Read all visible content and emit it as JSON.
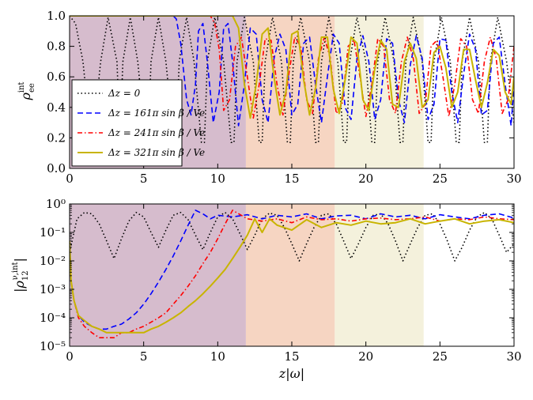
{
  "chart_data": [
    {
      "type": "line",
      "title": "",
      "xlabel": "z|ω|",
      "ylabel": "ρ_ee^int",
      "xlim": [
        0,
        30
      ],
      "ylim": [
        0,
        1.0
      ],
      "xticks": [
        "0",
        "5",
        "10",
        "15",
        "20",
        "25",
        "30"
      ],
      "yticks": [
        "0.0",
        "0.2",
        "0.4",
        "0.6",
        "0.8",
        "1.0"
      ],
      "shaded_regions": [
        {
          "x0": 0,
          "x1": 11.9,
          "color": "#d6bccd"
        },
        {
          "x0": 11.9,
          "x1": 17.9,
          "color": "#f6d5c2"
        },
        {
          "x0": 17.9,
          "x1": 23.9,
          "color": "#f4f1dc"
        }
      ],
      "series": [
        {
          "name": "Δz = 0",
          "color": "#000000",
          "style": "dotted",
          "x": [
            0,
            0.4,
            0.9,
            1.3,
            1.5,
            1.7,
            2.1,
            2.6,
            3.2,
            3.4,
            3.6,
            4.1,
            4.6,
            5.1,
            5.3,
            5.5,
            6.0,
            6.5,
            7.0,
            7.2,
            7.4,
            7.9,
            8.4,
            8.9,
            9.1,
            9.3,
            9.8,
            10.4,
            10.9,
            11.1,
            11.3,
            11.8,
            12.4,
            12.8,
            13.0,
            13.2,
            13.7,
            14.3,
            14.7,
            14.9,
            15.1,
            15.6,
            16.2,
            16.6,
            16.8,
            17.0,
            17.5,
            18.1,
            18.5,
            18.7,
            18.9,
            19.4,
            20.0,
            20.4,
            20.6,
            20.8,
            21.3,
            21.9,
            22.3,
            22.5,
            22.7,
            23.2,
            23.8,
            24.2,
            24.4,
            24.6,
            25.1,
            25.7,
            26.1,
            26.3,
            26.5,
            27.0,
            27.6,
            28.0,
            28.2,
            28.4,
            28.9,
            29.5,
            30
          ],
          "y": [
            1.0,
            0.95,
            0.7,
            0.32,
            0.2,
            0.32,
            0.7,
            0.99,
            0.7,
            0.2,
            0.7,
            0.99,
            0.7,
            0.2,
            0.2,
            0.7,
            0.99,
            0.7,
            0.2,
            0.2,
            0.7,
            0.99,
            0.7,
            0.17,
            0.17,
            0.7,
            0.99,
            0.7,
            0.17,
            0.17,
            0.7,
            0.99,
            0.7,
            0.17,
            0.17,
            0.7,
            0.99,
            0.7,
            0.17,
            0.17,
            0.7,
            0.99,
            0.7,
            0.17,
            0.17,
            0.7,
            0.99,
            0.7,
            0.17,
            0.17,
            0.7,
            0.99,
            0.7,
            0.17,
            0.17,
            0.7,
            0.99,
            0.7,
            0.17,
            0.17,
            0.7,
            0.99,
            0.7,
            0.17,
            0.17,
            0.7,
            0.99,
            0.7,
            0.17,
            0.17,
            0.7,
            0.99,
            0.7,
            0.17,
            0.17,
            0.7,
            0.99,
            0.7,
            0.3
          ]
        },
        {
          "name": "Δz = 161π sin β / V_e",
          "color": "#0000ff",
          "style": "dashed",
          "x": [
            0,
            7.0,
            7.2,
            7.5,
            7.9,
            8.2,
            8.5,
            8.7,
            9.0,
            9.3,
            9.7,
            10.1,
            10.4,
            10.7,
            11.0,
            11.4,
            11.8,
            12.2,
            12.6,
            13.0,
            13.4,
            13.8,
            14.2,
            14.6,
            15.0,
            15.4,
            15.8,
            16.2,
            16.6,
            17.0,
            17.4,
            17.8,
            18.2,
            18.6,
            19.0,
            19.4,
            19.8,
            20.2,
            20.6,
            21.0,
            21.4,
            21.8,
            22.2,
            22.6,
            23.0,
            23.4,
            23.8,
            24.2,
            24.6,
            25.0,
            25.4,
            25.8,
            26.2,
            26.6,
            27.0,
            27.4,
            27.8,
            28.2,
            28.6,
            29.0,
            29.4,
            29.8,
            30
          ],
          "y": [
            1.0,
            1.0,
            0.98,
            0.82,
            0.45,
            0.35,
            0.55,
            0.9,
            0.95,
            0.7,
            0.3,
            0.5,
            0.92,
            0.95,
            0.7,
            0.28,
            0.55,
            0.92,
            0.88,
            0.45,
            0.3,
            0.72,
            0.88,
            0.78,
            0.35,
            0.42,
            0.82,
            0.86,
            0.55,
            0.3,
            0.6,
            0.88,
            0.82,
            0.4,
            0.32,
            0.72,
            0.87,
            0.7,
            0.32,
            0.45,
            0.85,
            0.82,
            0.45,
            0.3,
            0.68,
            0.87,
            0.72,
            0.32,
            0.42,
            0.85,
            0.84,
            0.5,
            0.3,
            0.62,
            0.88,
            0.78,
            0.35,
            0.38,
            0.82,
            0.86,
            0.55,
            0.28,
            0.55
          ]
        },
        {
          "name": "Δz = 241π sin β / V_e",
          "color": "#ff0000",
          "style": "dashdot",
          "x": [
            0,
            9.5,
            9.8,
            10.1,
            10.4,
            10.8,
            11.2,
            11.6,
            12.0,
            12.4,
            12.8,
            13.2,
            13.6,
            14.0,
            14.4,
            14.8,
            15.2,
            15.6,
            16.0,
            16.4,
            16.8,
            17.2,
            17.6,
            18.0,
            18.4,
            18.8,
            19.2,
            19.6,
            20.0,
            20.4,
            20.8,
            21.2,
            21.6,
            22.0,
            22.4,
            22.8,
            23.2,
            23.6,
            24.0,
            24.4,
            24.8,
            25.2,
            25.6,
            26.0,
            26.4,
            26.8,
            27.2,
            27.6,
            28.0,
            28.4,
            28.8,
            29.2,
            29.6,
            30
          ],
          "y": [
            1.0,
            1.0,
            0.95,
            0.78,
            0.38,
            0.45,
            0.8,
            0.86,
            0.6,
            0.33,
            0.55,
            0.85,
            0.84,
            0.55,
            0.35,
            0.62,
            0.86,
            0.8,
            0.45,
            0.36,
            0.72,
            0.86,
            0.72,
            0.36,
            0.42,
            0.8,
            0.84,
            0.6,
            0.34,
            0.55,
            0.85,
            0.8,
            0.45,
            0.36,
            0.7,
            0.86,
            0.72,
            0.36,
            0.42,
            0.8,
            0.84,
            0.6,
            0.34,
            0.55,
            0.85,
            0.8,
            0.45,
            0.36,
            0.7,
            0.86,
            0.72,
            0.36,
            0.45,
            0.8
          ]
        },
        {
          "name": "Δz = 321π sin β / V_e",
          "color": "#c8b400",
          "style": "solid",
          "x": [
            0,
            11.0,
            11.4,
            11.8,
            12.2,
            12.6,
            13.0,
            13.4,
            13.8,
            14.2,
            14.6,
            15.0,
            15.4,
            15.8,
            16.2,
            16.6,
            17.0,
            17.4,
            17.8,
            18.2,
            18.6,
            19.0,
            19.4,
            19.8,
            20.2,
            20.6,
            21.0,
            21.4,
            21.8,
            22.2,
            22.6,
            23.0,
            23.4,
            23.8,
            24.2,
            24.6,
            25.0,
            25.4,
            25.8,
            26.2,
            26.6,
            27.0,
            27.4,
            27.8,
            28.2,
            28.6,
            29.0,
            29.4,
            29.8,
            30
          ],
          "y": [
            1.0,
            1.0,
            0.92,
            0.55,
            0.33,
            0.55,
            0.88,
            0.92,
            0.6,
            0.35,
            0.5,
            0.88,
            0.9,
            0.58,
            0.35,
            0.52,
            0.86,
            0.86,
            0.52,
            0.36,
            0.58,
            0.86,
            0.82,
            0.45,
            0.38,
            0.65,
            0.84,
            0.78,
            0.42,
            0.4,
            0.7,
            0.82,
            0.72,
            0.4,
            0.45,
            0.76,
            0.8,
            0.66,
            0.4,
            0.5,
            0.78,
            0.78,
            0.58,
            0.4,
            0.56,
            0.78,
            0.74,
            0.5,
            0.42,
            0.6
          ]
        }
      ],
      "legend": {
        "location": "lower-left",
        "entries": [
          "Δz = 0",
          "Δz = 161π sin β / Ve",
          "Δz = 241π sin β / Ve",
          "Δz = 321π sin β / Ve"
        ]
      }
    },
    {
      "type": "line",
      "title": "",
      "xlabel": "z|ω|",
      "ylabel": "|ρ_12^{ν,int}|",
      "yscale": "log",
      "xlim": [
        0,
        30
      ],
      "ylim": [
        1e-05,
        1
      ],
      "xticks": [
        "0",
        "5",
        "10",
        "15",
        "20",
        "25",
        "30"
      ],
      "yticks": [
        "10⁻⁵",
        "10⁻⁴",
        "10⁻³",
        "10⁻²",
        "10⁻¹",
        "10⁰"
      ],
      "shaded_regions": [
        {
          "x0": 0,
          "x1": 11.9,
          "color": "#d6bccd"
        },
        {
          "x0": 11.9,
          "x1": 17.9,
          "color": "#f6d5c2"
        },
        {
          "x0": 17.9,
          "x1": 23.9,
          "color": "#f4f1dc"
        }
      ],
      "series": [
        {
          "name": "Δz = 0",
          "color": "#000000",
          "style": "dotted",
          "x": [
            0,
            0.5,
            1.0,
            1.5,
            2.0,
            2.5,
            3.0,
            3.5,
            4.0,
            4.5,
            5.0,
            5.5,
            6.0,
            6.5,
            7.0,
            7.5,
            8.0,
            8.5,
            9.0,
            9.5,
            10.0,
            10.5,
            11.0,
            11.5,
            12.0,
            12.5,
            13.0,
            13.5,
            14.0,
            14.5,
            15.0,
            15.5,
            16.0,
            16.5,
            17.0,
            17.5,
            18.0,
            18.5,
            19.0,
            19.5,
            20.0,
            20.5,
            21.0,
            21.5,
            22.0,
            22.5,
            23.0,
            23.5,
            24.0,
            24.5,
            25.0,
            25.5,
            26.0,
            26.5,
            27.0,
            27.5,
            28.0,
            28.5,
            29.0,
            29.5,
            30
          ],
          "y": [
            0.02,
            0.3,
            0.5,
            0.45,
            0.2,
            0.05,
            0.012,
            0.06,
            0.25,
            0.5,
            0.35,
            0.1,
            0.03,
            0.12,
            0.4,
            0.5,
            0.28,
            0.08,
            0.025,
            0.1,
            0.35,
            0.5,
            0.3,
            0.09,
            0.025,
            0.08,
            0.3,
            0.48,
            0.4,
            0.15,
            0.04,
            0.01,
            0.04,
            0.15,
            0.4,
            0.45,
            0.2,
            0.05,
            0.012,
            0.04,
            0.15,
            0.4,
            0.45,
            0.2,
            0.05,
            0.01,
            0.04,
            0.15,
            0.4,
            0.45,
            0.2,
            0.05,
            0.01,
            0.03,
            0.12,
            0.35,
            0.5,
            0.3,
            0.08,
            0.02,
            0.04
          ]
        },
        {
          "name": "Δz = 161π sin β / V_e",
          "color": "#0000ff",
          "style": "dashed",
          "x": [
            0,
            0.1,
            0.3,
            0.6,
            1.0,
            1.5,
            2.0,
            2.5,
            3.0,
            3.5,
            4.0,
            4.5,
            5.0,
            5.5,
            6.0,
            6.5,
            7.0,
            7.5,
            8.0,
            8.5,
            9.0,
            9.5,
            10.0,
            11.0,
            12.0,
            13.0,
            14.0,
            15.0,
            16.0,
            17.0,
            18.0,
            19.0,
            20.0,
            21.0,
            22.0,
            23.0,
            24.0,
            25.0,
            26.0,
            27.0,
            28.0,
            29.0,
            30
          ],
          "y": [
            0.05,
            0.002,
            0.0004,
            0.00012,
            7e-05,
            5e-05,
            4e-05,
            4e-05,
            5e-05,
            6e-05,
            9e-05,
            0.00015,
            0.0003,
            0.0007,
            0.0018,
            0.005,
            0.015,
            0.05,
            0.18,
            0.6,
            0.45,
            0.3,
            0.4,
            0.35,
            0.42,
            0.3,
            0.4,
            0.35,
            0.45,
            0.3,
            0.38,
            0.4,
            0.3,
            0.45,
            0.35,
            0.4,
            0.3,
            0.42,
            0.35,
            0.3,
            0.4,
            0.45,
            0.32
          ]
        },
        {
          "name": "Δz = 241π sin β / V_e",
          "color": "#ff0000",
          "style": "dashdot",
          "x": [
            0,
            0.1,
            0.3,
            0.6,
            1.0,
            1.5,
            2.0,
            2.5,
            3.0,
            3.5,
            4.0,
            4.5,
            5.0,
            5.5,
            6.0,
            6.5,
            7.0,
            7.5,
            8.0,
            8.5,
            9.0,
            9.5,
            10.0,
            10.5,
            11.0,
            12.0,
            13.0,
            14.0,
            15.0,
            16.0,
            17.0,
            18.0,
            19.0,
            20.0,
            21.0,
            22.0,
            23.0,
            24.0,
            25.0,
            26.0,
            27.0,
            28.0,
            29.0,
            30
          ],
          "y": [
            0.05,
            0.002,
            0.0004,
            0.0001,
            5e-05,
            3e-05,
            2e-05,
            2e-05,
            2e-05,
            3e-05,
            3e-05,
            4e-05,
            5e-05,
            7e-05,
            0.0001,
            0.00015,
            0.0003,
            0.0006,
            0.0013,
            0.003,
            0.008,
            0.02,
            0.06,
            0.2,
            0.6,
            0.3,
            0.25,
            0.3,
            0.22,
            0.35,
            0.28,
            0.3,
            0.25,
            0.3,
            0.32,
            0.28,
            0.3,
            0.35,
            0.25,
            0.3,
            0.28,
            0.35,
            0.3,
            0.28
          ]
        },
        {
          "name": "Δz = 321π sin β / V_e",
          "color": "#c8b400",
          "style": "solid",
          "x": [
            0,
            0.1,
            0.3,
            0.6,
            1.0,
            1.5,
            2.0,
            2.5,
            3.0,
            3.5,
            4.0,
            4.5,
            5.0,
            5.5,
            6.0,
            6.5,
            7.0,
            7.5,
            8.0,
            8.5,
            9.0,
            9.5,
            10.0,
            10.5,
            11.0,
            11.5,
            12.0,
            12.5,
            13.0,
            13.5,
            14.0,
            15.0,
            16.0,
            17.0,
            18.0,
            19.0,
            20.0,
            21.0,
            22.0,
            23.0,
            24.0,
            25.0,
            26.0,
            27.0,
            28.0,
            29.0,
            30
          ],
          "y": [
            0.05,
            0.002,
            0.0004,
            0.00012,
            8e-05,
            5e-05,
            4e-05,
            3e-05,
            3e-05,
            3e-05,
            3e-05,
            3e-05,
            3e-05,
            4e-05,
            5e-05,
            7e-05,
            0.0001,
            0.00015,
            0.00025,
            0.0004,
            0.0007,
            0.0013,
            0.0025,
            0.005,
            0.012,
            0.03,
            0.08,
            0.3,
            0.1,
            0.3,
            0.18,
            0.12,
            0.28,
            0.15,
            0.22,
            0.18,
            0.25,
            0.2,
            0.22,
            0.3,
            0.2,
            0.25,
            0.3,
            0.2,
            0.25,
            0.28,
            0.22
          ]
        }
      ]
    }
  ]
}
